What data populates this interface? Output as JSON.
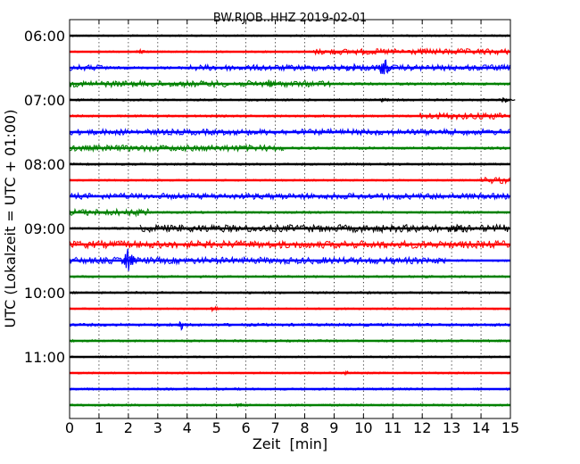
{
  "chart_data": {
    "type": "line",
    "title": "BW.RJOB..HHZ 2019-02-01",
    "xlabel": "Zeit  [min]",
    "ylabel": "UTC (Lokalzeit = UTC + 01:00)",
    "xlim": [
      0,
      15
    ],
    "x_ticks": [
      "0",
      "1",
      "2",
      "3",
      "4",
      "5",
      "6",
      "7",
      "8",
      "9",
      "10",
      "11",
      "12",
      "13",
      "14",
      "15"
    ],
    "hour_labels": [
      "06:00",
      "07:00",
      "08:00",
      "09:00",
      "10:00",
      "11:00"
    ],
    "grid": "vertical dotted at each minute",
    "colors": [
      "#000000",
      "#ff0000",
      "#0000ff",
      "#008000"
    ],
    "traces": [
      {
        "time": "06:00",
        "color": "#000000",
        "segments": [
          [
            0,
            15,
            0.25
          ]
        ],
        "events": []
      },
      {
        "time": "06:15",
        "color": "#ff0000",
        "segments": [
          [
            0,
            8.3,
            0.25
          ],
          [
            8.3,
            15,
            0.8
          ]
        ],
        "events": [
          [
            2.4,
            0.8
          ]
        ]
      },
      {
        "time": "06:30",
        "color": "#0000ff",
        "segments": [
          [
            0,
            1.4,
            0.8
          ],
          [
            1.4,
            3.9,
            0.35
          ],
          [
            3.9,
            15,
            0.8
          ]
        ],
        "events": [
          [
            9.6,
            1.6
          ],
          [
            10.7,
            3.0
          ]
        ]
      },
      {
        "time": "06:45",
        "color": "#008000",
        "segments": [
          [
            0,
            8.9,
            0.85
          ],
          [
            8.9,
            15,
            0.35
          ]
        ],
        "events": [
          [
            6.8,
            1.2
          ]
        ]
      },
      {
        "time": "07:00",
        "color": "#000000",
        "segments": [
          [
            0,
            15,
            0.3
          ]
        ],
        "events": [
          [
            10.7,
            0.7
          ],
          [
            14.8,
            0.7
          ]
        ]
      },
      {
        "time": "07:15",
        "color": "#ff0000",
        "segments": [
          [
            0,
            11.9,
            0.3
          ],
          [
            11.9,
            15,
            0.9
          ]
        ],
        "events": []
      },
      {
        "time": "07:30",
        "color": "#0000ff",
        "segments": [
          [
            0,
            15,
            0.8
          ]
        ],
        "events": []
      },
      {
        "time": "07:45",
        "color": "#008000",
        "segments": [
          [
            0,
            7.3,
            0.85
          ],
          [
            7.3,
            15,
            0.35
          ]
        ],
        "events": []
      },
      {
        "time": "08:00",
        "color": "#000000",
        "segments": [
          [
            0,
            15,
            0.3
          ]
        ],
        "events": []
      },
      {
        "time": "08:15",
        "color": "#ff0000",
        "segments": [
          [
            0,
            14,
            0.25
          ],
          [
            14,
            15,
            0.9
          ]
        ],
        "events": []
      },
      {
        "time": "08:30",
        "color": "#0000ff",
        "segments": [
          [
            0,
            15,
            0.8
          ]
        ],
        "events": []
      },
      {
        "time": "08:45",
        "color": "#008000",
        "segments": [
          [
            0,
            2.7,
            0.9
          ],
          [
            2.7,
            15,
            0.3
          ]
        ],
        "events": []
      },
      {
        "time": "09:00",
        "color": "#000000",
        "segments": [
          [
            0,
            2.4,
            0.3
          ],
          [
            2.4,
            15,
            1.0
          ]
        ],
        "events": [
          [
            13.2,
            1.2
          ]
        ]
      },
      {
        "time": "09:15",
        "color": "#ff0000",
        "segments": [
          [
            0,
            15,
            1.0
          ]
        ],
        "events": []
      },
      {
        "time": "09:30",
        "color": "#0000ff",
        "segments": [
          [
            0,
            12.8,
            0.9
          ],
          [
            12.8,
            15,
            0.3
          ]
        ],
        "events": [
          [
            2.0,
            3.4
          ]
        ]
      },
      {
        "time": "09:45",
        "color": "#008000",
        "segments": [
          [
            0,
            15,
            0.3
          ]
        ],
        "events": []
      },
      {
        "time": "10:00",
        "color": "#000000",
        "segments": [
          [
            0,
            15,
            0.3
          ]
        ],
        "events": []
      },
      {
        "time": "10:15",
        "color": "#ff0000",
        "segments": [
          [
            0,
            15,
            0.25
          ]
        ],
        "events": [
          [
            4.9,
            0.9
          ]
        ]
      },
      {
        "time": "10:30",
        "color": "#0000ff",
        "segments": [
          [
            0,
            15,
            0.4
          ]
        ],
        "events": [
          [
            3.8,
            1.4
          ]
        ]
      },
      {
        "time": "10:45",
        "color": "#008000",
        "segments": [
          [
            0,
            15,
            0.3
          ]
        ],
        "events": []
      },
      {
        "time": "11:00",
        "color": "#000000",
        "segments": [
          [
            0,
            15,
            0.25
          ]
        ],
        "events": []
      },
      {
        "time": "11:15",
        "color": "#ff0000",
        "segments": [
          [
            0,
            15,
            0.25
          ]
        ],
        "events": [
          [
            9.4,
            0.6
          ]
        ]
      },
      {
        "time": "11:30",
        "color": "#0000ff",
        "segments": [
          [
            0,
            15,
            0.3
          ]
        ],
        "events": []
      },
      {
        "time": "11:45",
        "color": "#008000",
        "segments": [
          [
            0,
            15,
            0.3
          ]
        ],
        "events": [
          [
            5.8,
            0.6
          ]
        ]
      }
    ]
  }
}
